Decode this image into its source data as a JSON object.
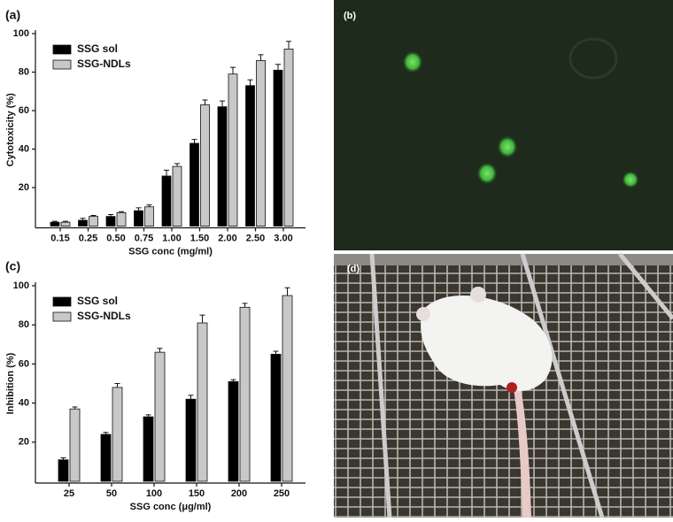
{
  "chart_data": [
    {
      "type": "bar",
      "label": "(a)",
      "x_label": "SSG conc (mg/ml)",
      "y_label": "Cytotoxicity (%)",
      "categories": [
        "0.15",
        "0.25",
        "0.50",
        "0.75",
        "1.00",
        "1.50",
        "2.00",
        "2.50",
        "3.00"
      ],
      "series": [
        {
          "name": "SSG sol",
          "color": "#000000",
          "values": [
            2,
            3,
            5,
            8,
            26,
            43,
            62,
            73,
            81
          ],
          "errors": [
            0.5,
            1,
            1,
            1.5,
            3,
            2,
            3,
            3,
            3
          ]
        },
        {
          "name": "SSG-NDLs",
          "color": "#c8c8c8",
          "values": [
            2,
            5,
            7,
            10,
            31,
            63,
            79,
            86,
            92
          ],
          "errors": [
            0.5,
            0.5,
            0.5,
            1,
            1.5,
            2.5,
            3.5,
            3,
            4
          ]
        }
      ],
      "ylim": [
        0,
        100
      ],
      "yticks": [
        20,
        40,
        60,
        80,
        100
      ],
      "legend": "upper left"
    },
    {
      "type": "bar",
      "label": "(c)",
      "x_label": "SSG conc (μg/ml)",
      "y_label": "Inhibition (%)",
      "categories": [
        "25",
        "50",
        "100",
        "150",
        "200",
        "250"
      ],
      "series": [
        {
          "name": "SSG sol",
          "color": "#000000",
          "values": [
            11,
            24,
            33,
            42,
            51,
            65
          ],
          "errors": [
            1,
            1,
            1,
            2,
            1,
            1.5
          ]
        },
        {
          "name": "SSG-NDLs",
          "color": "#c8c8c8",
          "values": [
            37,
            48,
            66,
            81,
            89,
            95
          ],
          "errors": [
            1,
            2,
            2,
            4,
            2,
            4
          ]
        }
      ],
      "ylim": [
        0,
        100
      ],
      "yticks": [
        20,
        40,
        60,
        80,
        100
      ],
      "legend": "upper left"
    }
  ],
  "images": [
    {
      "label": "(b)"
    },
    {
      "label": "(d)"
    }
  ]
}
